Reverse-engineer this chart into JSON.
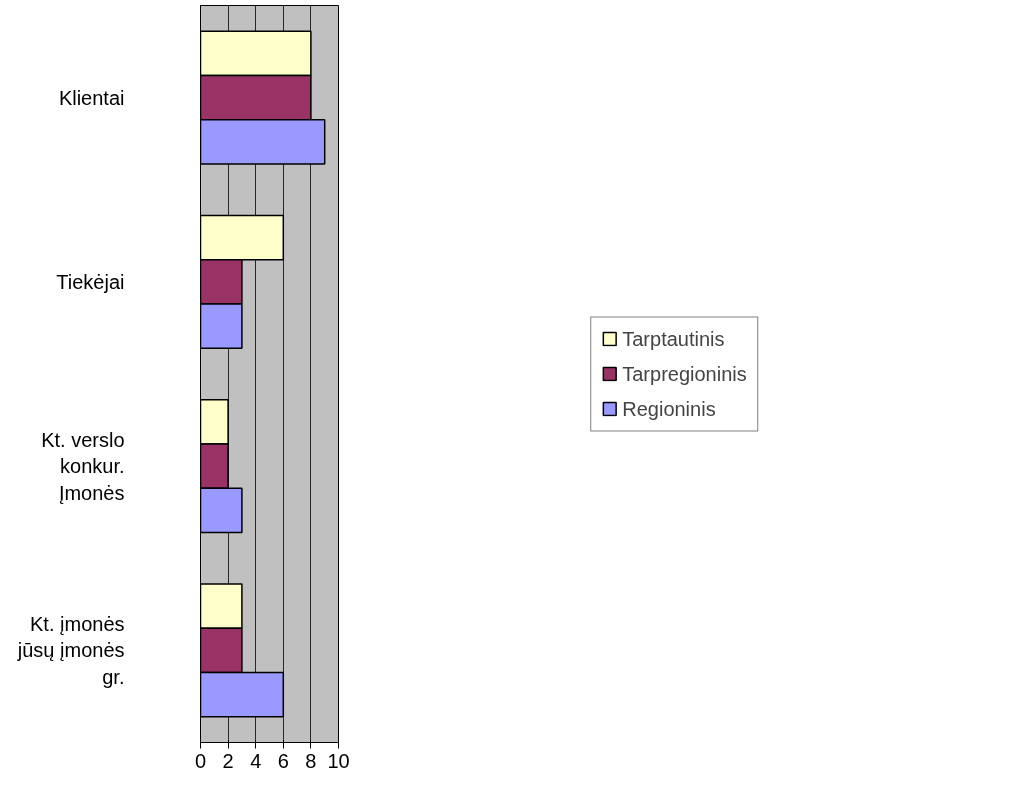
{
  "chart_data": {
    "type": "bar",
    "orientation": "horizontal",
    "categories": [
      "Klientai",
      "Tiekėjai",
      "Kt. verslo konkur. Įmonės",
      "Kt. įmonės jūsų įmonės gr."
    ],
    "series": [
      {
        "name": "Tarptautinis",
        "color": "#ffffcc",
        "values": [
          8,
          6,
          2,
          3
        ]
      },
      {
        "name": "Tarpregioninis",
        "color": "#993366",
        "values": [
          8,
          3,
          2,
          3
        ]
      },
      {
        "name": "Regioninis",
        "color": "#9999ff",
        "values": [
          9,
          3,
          3,
          6
        ]
      }
    ],
    "xlim": [
      0,
      10
    ],
    "xticks": [
      0,
      2,
      4,
      6,
      8,
      10
    ],
    "grid": "x",
    "legend": "right"
  }
}
